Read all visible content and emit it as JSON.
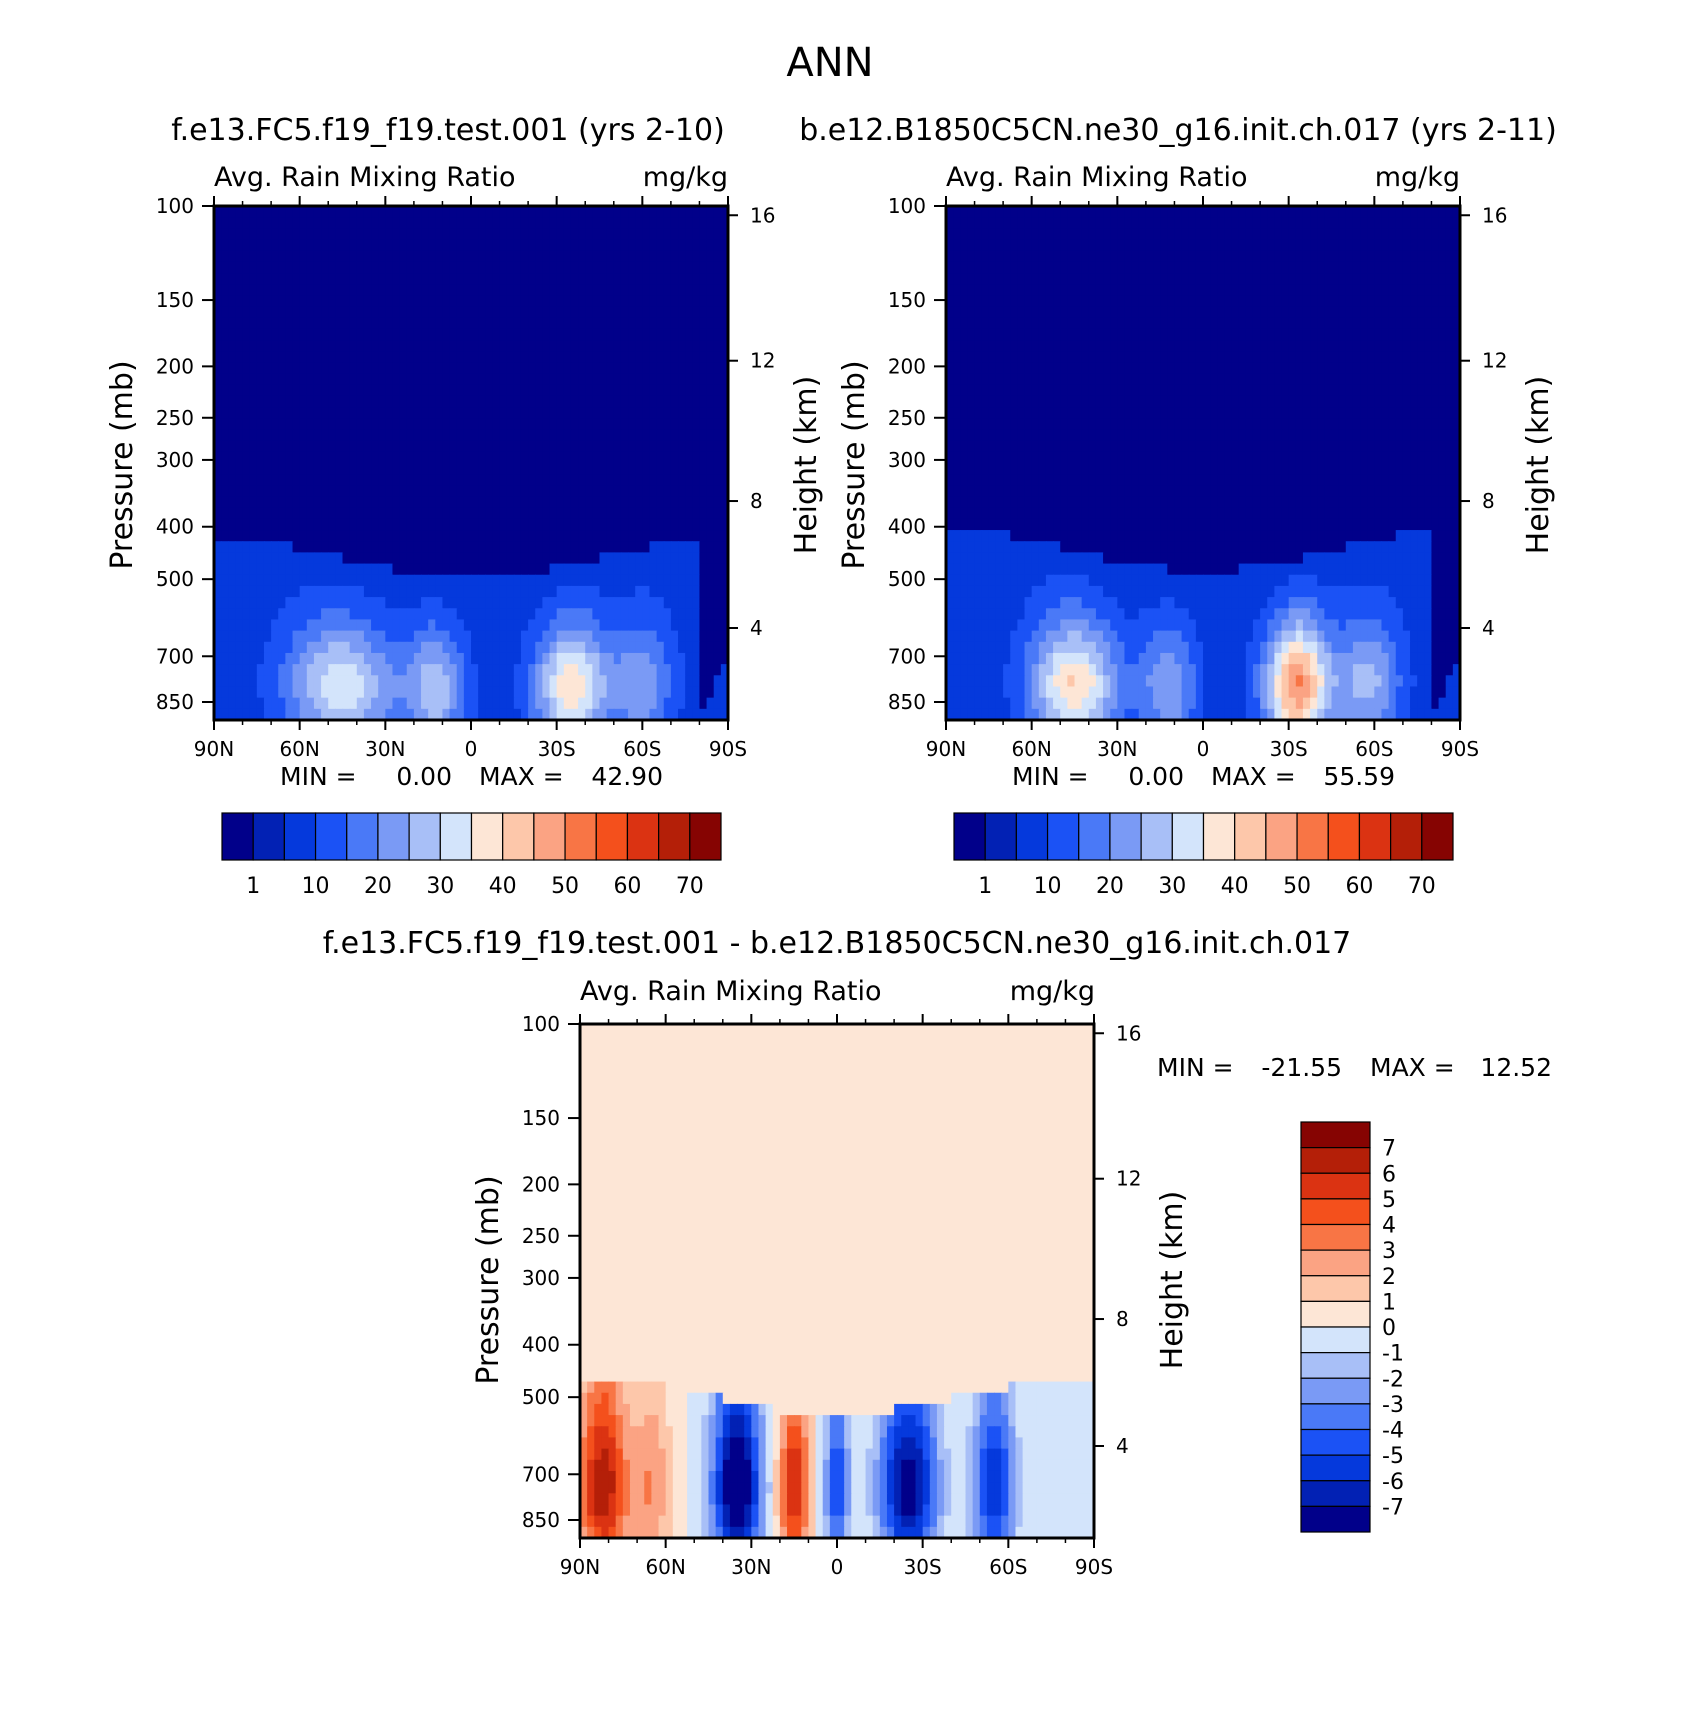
{
  "page_title": "ANN",
  "palette": {
    "abs": [
      "#01008a",
      "#0221b4",
      "#0539dc",
      "#1b52f5",
      "#4a79f7",
      "#7a9af5",
      "#a8bff7",
      "#d3e4fb",
      "#fde6d6",
      "#fdc7aa",
      "#fba383",
      "#f87545",
      "#f4501c",
      "#db3312",
      "#b41f08",
      "#860402"
    ],
    "diff": [
      "#01008a",
      "#0221b4",
      "#0539dc",
      "#1b52f5",
      "#4a79f7",
      "#7a9af5",
      "#a8bff7",
      "#d3e4fb",
      "#fde6d6",
      "#fdc7aa",
      "#fba383",
      "#f87545",
      "#f4501c",
      "#db3312",
      "#b41f08",
      "#860402"
    ]
  },
  "chart_data": [
    {
      "type": "heatmap",
      "case_title": "f.e13.FC5.f19_f19.test.001 (yrs 2-10)",
      "left_label": "Avg. Rain Mixing Ratio",
      "units": "mg/kg",
      "ylabel": "Pressure (mb)",
      "ylabel2": "Height (km)",
      "x_ticks": [
        "90N",
        "60N",
        "30N",
        "0",
        "30S",
        "60S",
        "90S"
      ],
      "y_ticks": [
        "100",
        "150",
        "200",
        "250",
        "300",
        "400",
        "500",
        "700",
        "850"
      ],
      "y2_ticks": [
        "16",
        "12",
        "8",
        "4"
      ],
      "min_label": "MIN =",
      "min_value": "0.00",
      "max_label": "MAX =",
      "max_value": "42.90",
      "colorbar_labels": [
        "1",
        "10",
        "20",
        "30",
        "40",
        "50",
        "60",
        "70"
      ],
      "max": 42.9
    },
    {
      "type": "heatmap",
      "case_title": "b.e12.B1850C5CN.ne30_g16.init.ch.017 (yrs 2-11)",
      "left_label": "Avg. Rain Mixing Ratio",
      "units": "mg/kg",
      "ylabel": "Pressure (mb)",
      "ylabel2": "Height (km)",
      "x_ticks": [
        "90N",
        "60N",
        "30N",
        "0",
        "30S",
        "60S",
        "90S"
      ],
      "y_ticks": [
        "100",
        "150",
        "200",
        "250",
        "300",
        "400",
        "500",
        "700",
        "850"
      ],
      "y2_ticks": [
        "16",
        "12",
        "8",
        "4"
      ],
      "min_label": "MIN =",
      "min_value": "0.00",
      "max_label": "MAX =",
      "max_value": "55.59",
      "colorbar_labels": [
        "1",
        "10",
        "20",
        "30",
        "40",
        "50",
        "60",
        "70"
      ],
      "max": 55.59
    },
    {
      "type": "heatmap",
      "case_title": "f.e13.FC5.f19_f19.test.001 - b.e12.B1850C5CN.ne30_g16.init.ch.017",
      "left_label": "Avg. Rain Mixing Ratio",
      "units": "mg/kg",
      "ylabel": "Pressure (mb)",
      "ylabel2": "Height (km)",
      "x_ticks": [
        "90N",
        "60N",
        "30N",
        "0",
        "30S",
        "60S",
        "90S"
      ],
      "y_ticks": [
        "100",
        "150",
        "200",
        "250",
        "300",
        "400",
        "500",
        "700",
        "850"
      ],
      "y2_ticks": [
        "16",
        "12",
        "8",
        "4"
      ],
      "min_label": "MIN =",
      "min_value": "-21.55",
      "max_label": "MAX =",
      "max_value": "12.52",
      "colorbar_labels": [
        "7",
        "6",
        "5",
        "4",
        "3",
        "2",
        "1",
        "0",
        "-1",
        "-2",
        "-3",
        "-4",
        "-5",
        "-6",
        "-7"
      ],
      "min": -21.55,
      "max": 12.52
    }
  ]
}
